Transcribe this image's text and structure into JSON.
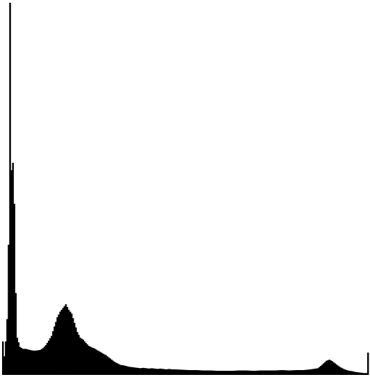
{
  "chart_data": {
    "type": "area",
    "title": "",
    "xlabel": "",
    "ylabel": "",
    "xlim": [
      0,
      255
    ],
    "ylim": [
      0,
      1
    ],
    "grid": false,
    "legend": "none",
    "colors": {
      "fill": "#000000",
      "background": "#ffffff"
    },
    "x": [
      0,
      1,
      2,
      3,
      4,
      5,
      6,
      7,
      8,
      9,
      10,
      12,
      14,
      16,
      18,
      20,
      22,
      24,
      26,
      28,
      30,
      32,
      34,
      36,
      38,
      40,
      42,
      44,
      46,
      48,
      50,
      52,
      54,
      56,
      58,
      60,
      62,
      64,
      66,
      68,
      70,
      72,
      74,
      76,
      78,
      80,
      82,
      84,
      86,
      88,
      90,
      92,
      94,
      96,
      98,
      100,
      102,
      104,
      106,
      108,
      110,
      112,
      114,
      116,
      118,
      120,
      125,
      130,
      135,
      140,
      145,
      150,
      155,
      160,
      165,
      170,
      175,
      180,
      185,
      190,
      195,
      200,
      205,
      210,
      215,
      220,
      222,
      224,
      226,
      228,
      230,
      232,
      234,
      236,
      238,
      240,
      242,
      244,
      246,
      248,
      250,
      252,
      253,
      254,
      255
    ],
    "values": [
      0.09,
      0.05,
      0.09,
      0.15,
      0.35,
      1.0,
      0.55,
      0.57,
      0.46,
      0.22,
      0.1,
      0.075,
      0.07,
      0.07,
      0.068,
      0.066,
      0.065,
      0.066,
      0.067,
      0.072,
      0.08,
      0.092,
      0.105,
      0.13,
      0.155,
      0.17,
      0.18,
      0.19,
      0.175,
      0.165,
      0.14,
      0.115,
      0.1,
      0.095,
      0.086,
      0.078,
      0.074,
      0.071,
      0.066,
      0.062,
      0.057,
      0.053,
      0.047,
      0.041,
      0.035,
      0.031,
      0.027,
      0.026,
      0.024,
      0.022,
      0.021,
      0.02,
      0.019,
      0.018,
      0.019,
      0.018,
      0.017,
      0.018,
      0.017,
      0.016,
      0.017,
      0.016,
      0.015,
      0.016,
      0.015,
      0.015,
      0.014,
      0.013,
      0.013,
      0.012,
      0.012,
      0.011,
      0.011,
      0.011,
      0.012,
      0.012,
      0.011,
      0.012,
      0.012,
      0.012,
      0.013,
      0.012,
      0.013,
      0.013,
      0.015,
      0.018,
      0.024,
      0.031,
      0.038,
      0.041,
      0.037,
      0.031,
      0.025,
      0.02,
      0.016,
      0.013,
      0.011,
      0.01,
      0.008,
      0.007,
      0.006,
      0.005,
      0.005,
      0.005,
      0.06
    ]
  }
}
